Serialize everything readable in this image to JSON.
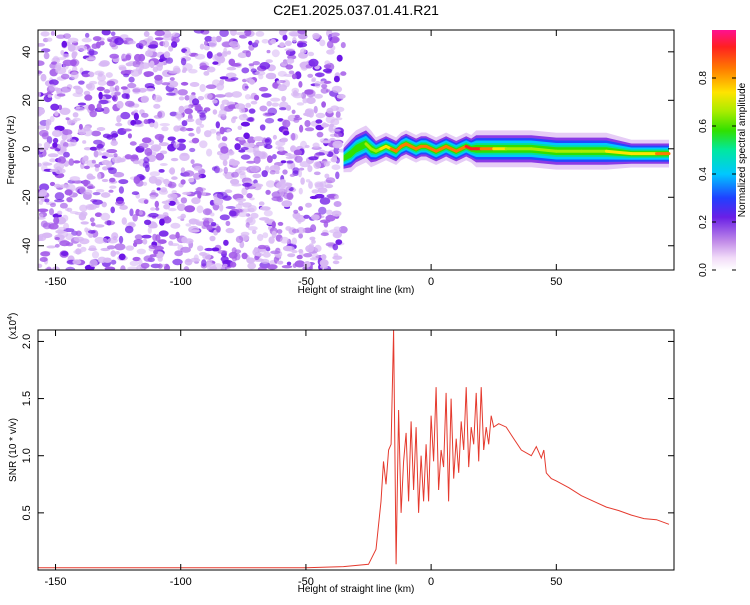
{
  "title": "C2E1.2025.037.01.41.R21",
  "colors": {
    "snr_line": "#e53a2e",
    "noise_light": "#d8b8f4",
    "noise_mid": "#a35ae8",
    "noise_dark": "#6a11e6"
  },
  "chart_data": [
    {
      "type": "heatmap",
      "title": "",
      "xlabel": "Height of straight line (km)",
      "ylabel": "Frequency (Hz)",
      "xlim": [
        -157,
        97
      ],
      "ylim": [
        -50,
        49
      ],
      "x_ticks": [
        -150,
        -100,
        -50,
        0,
        50
      ],
      "y_ticks": [
        -40,
        -20,
        0,
        20,
        40
      ],
      "noise_region_x": [
        -157,
        -35
      ],
      "ridge": {
        "x": [
          -35,
          -32,
          -30,
          -28,
          -26,
          -24,
          -22,
          -20,
          -18,
          -16,
          -14,
          -12,
          -10,
          -8,
          -6,
          -4,
          -2,
          0,
          2,
          4,
          6,
          8,
          10,
          12,
          14,
          16,
          18,
          20,
          25,
          30,
          40,
          50,
          60,
          70,
          80,
          90,
          95
        ],
        "freq": [
          -4,
          -2,
          0,
          1,
          2,
          0,
          -1,
          0,
          1,
          0,
          -1,
          1,
          2,
          1,
          0,
          1,
          1,
          0,
          -1,
          0,
          1,
          0,
          -1,
          0,
          1,
          0,
          0,
          0,
          0,
          0,
          0,
          -1,
          -1,
          -1,
          -2,
          -2,
          -2
        ],
        "halfwidth_hz": [
          3,
          4,
          4,
          4,
          4,
          4,
          3,
          3,
          3,
          3,
          3,
          3,
          3,
          3,
          3,
          3,
          3,
          3,
          3,
          3,
          3,
          3,
          3,
          3,
          3,
          3,
          4,
          4,
          4,
          4,
          4,
          4,
          4,
          4,
          3,
          3,
          3
        ],
        "peak_amplitude": [
          0.3,
          0.4,
          0.5,
          0.55,
          0.6,
          0.6,
          0.65,
          0.7,
          0.75,
          0.8,
          0.85,
          0.85,
          0.85,
          0.9,
          0.85,
          0.85,
          0.9,
          0.85,
          0.9,
          0.85,
          0.85,
          0.9,
          0.85,
          0.85,
          0.9,
          0.95,
          0.95,
          0.95,
          0.75,
          0.7,
          0.65,
          0.65,
          0.65,
          0.7,
          0.75,
          0.8,
          0.85
        ]
      },
      "colorbar": {
        "label": "Normalized spectral amplitude",
        "range": [
          0.0,
          1.0
        ],
        "ticks": [
          0.0,
          0.2,
          0.4,
          0.6,
          0.8
        ],
        "tick_labels": [
          "0.0",
          "0.2",
          "0.4",
          "0.6",
          "0.8"
        ]
      }
    },
    {
      "type": "line",
      "title": "",
      "xlabel": "Height of straight line (km)",
      "ylabel": "SNR (10 * v/v)",
      "y_multiplier": "(x10",
      "y_multiplier_exp": "4",
      "y_multiplier_close": ")",
      "xlim": [
        -157,
        97
      ],
      "ylim": [
        0,
        2.1
      ],
      "x_ticks": [
        -150,
        -100,
        -50,
        0,
        50
      ],
      "y_ticks": [
        0.5,
        1.0,
        1.5,
        2.0
      ],
      "y_tick_labels": [
        "0.5",
        "1.0",
        "1.5",
        "2.0"
      ],
      "series": [
        {
          "x": [
            -157,
            -100,
            -50,
            -35,
            -25,
            -22,
            -20,
            -19,
            -18,
            -17,
            -16,
            -15,
            -14,
            -13,
            -12,
            -11,
            -10,
            -9,
            -8,
            -7,
            -6,
            -5,
            -4,
            -3,
            -2,
            -1,
            0,
            1,
            2,
            3,
            4,
            5,
            6,
            7,
            8,
            9,
            10,
            11,
            12,
            13,
            14,
            15,
            16,
            17,
            18,
            19,
            20,
            21,
            22,
            23,
            24,
            25,
            27,
            30,
            33,
            36,
            40,
            42,
            44,
            45,
            46,
            48,
            50,
            55,
            60,
            65,
            70,
            75,
            80,
            85,
            90,
            95
          ],
          "y": [
            0.02,
            0.02,
            0.02,
            0.03,
            0.05,
            0.18,
            0.6,
            0.95,
            0.75,
            1.05,
            1.1,
            2.1,
            0.05,
            1.4,
            0.5,
            0.95,
            1.2,
            0.6,
            1.3,
            0.7,
            1.25,
            0.5,
            1.0,
            0.6,
            1.1,
            0.6,
            1.35,
            0.95,
            1.6,
            0.7,
            1.05,
            0.9,
            1.55,
            0.6,
            1.5,
            0.8,
            1.15,
            0.85,
            1.3,
            1.05,
            1.6,
            0.9,
            1.25,
            1.1,
            1.55,
            0.95,
            1.6,
            1.05,
            1.25,
            1.1,
            1.35,
            1.25,
            1.28,
            1.25,
            1.15,
            1.05,
            1.0,
            1.08,
            0.98,
            1.05,
            0.85,
            0.8,
            0.78,
            0.72,
            0.65,
            0.6,
            0.55,
            0.52,
            0.48,
            0.45,
            0.44,
            0.4
          ]
        }
      ]
    }
  ]
}
